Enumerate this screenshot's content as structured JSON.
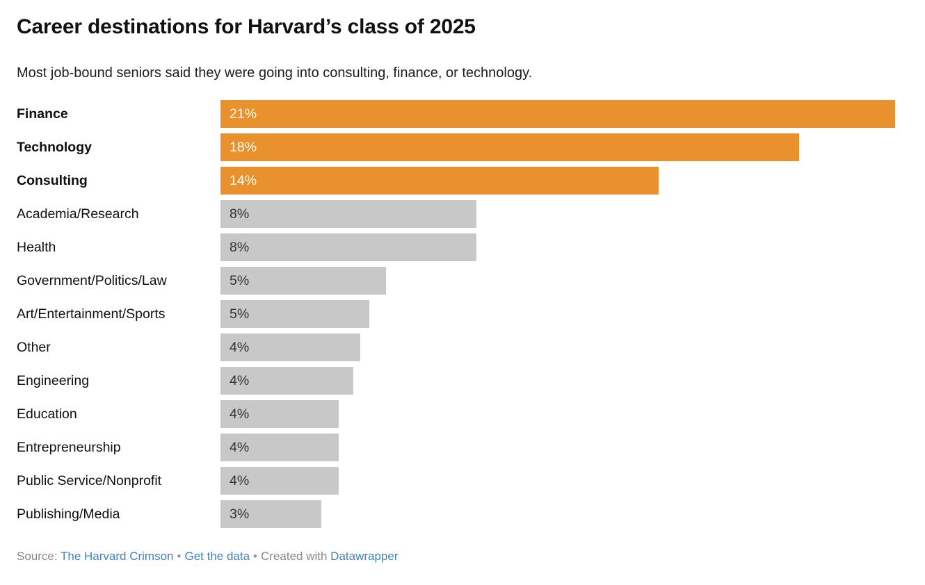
{
  "header": {
    "title": "Career destinations for Harvard’s class of 2025",
    "subtitle": "Most job-bound seniors said they were going into consulting, finance, or technology."
  },
  "chart_data": {
    "type": "bar",
    "orientation": "horizontal",
    "title": "Career destinations for Harvard’s class of 2025",
    "subtitle": "Most job-bound seniors said they were going into consulting, finance, or technology.",
    "categories": [
      "Finance",
      "Technology",
      "Consulting",
      "Academia/Research",
      "Health",
      "Government/Politics/Law",
      "Art/Entertainment/Sports",
      "Other",
      "Engineering",
      "Education",
      "Entrepreneurship",
      "Public Service/Nonprofit",
      "Publishing/Media"
    ],
    "values": [
      21,
      18,
      14,
      8,
      8,
      5,
      5,
      4,
      4,
      4,
      4,
      4,
      3
    ],
    "value_labels": [
      "21%",
      "18%",
      "14%",
      "8%",
      "8%",
      "5%",
      "5%",
      "4%",
      "4%",
      "4%",
      "4%",
      "4%",
      "3%"
    ],
    "unit": "%",
    "xlim": [
      0,
      21
    ],
    "grid": false,
    "legend": "none",
    "highlighted_categories": [
      "Finance",
      "Technology",
      "Consulting"
    ],
    "bar_color_highlight": "#E8912D",
    "bar_color_default": "#C8C8C8",
    "value_color_on_highlight": "#FFFFFF",
    "value_color_on_default": "#333333"
  },
  "rows": [
    {
      "label": "Finance",
      "value_label": "21%",
      "width_pct": 100,
      "highlight": true,
      "bold": true
    },
    {
      "label": "Technology",
      "value_label": "18%",
      "width_pct": 85.8,
      "highlight": true,
      "bold": true
    },
    {
      "label": "Consulting",
      "value_label": "14%",
      "width_pct": 64.9,
      "highlight": true,
      "bold": true
    },
    {
      "label": "Academia/Research",
      "value_label": "8%",
      "width_pct": 37.9,
      "highlight": false,
      "bold": false
    },
    {
      "label": "Health",
      "value_label": "8%",
      "width_pct": 37.9,
      "highlight": false,
      "bold": false
    },
    {
      "label": "Government/Politics/Law",
      "value_label": "5%",
      "width_pct": 24.5,
      "highlight": false,
      "bold": false
    },
    {
      "label": "Art/Entertainment/Sports",
      "value_label": "5%",
      "width_pct": 22.1,
      "highlight": false,
      "bold": false
    },
    {
      "label": "Other",
      "value_label": "4%",
      "width_pct": 20.7,
      "highlight": false,
      "bold": false
    },
    {
      "label": "Engineering",
      "value_label": "4%",
      "width_pct": 19.7,
      "highlight": false,
      "bold": false
    },
    {
      "label": "Education",
      "value_label": "4%",
      "width_pct": 17.5,
      "highlight": false,
      "bold": false
    },
    {
      "label": "Entrepreneurship",
      "value_label": "4%",
      "width_pct": 17.5,
      "highlight": false,
      "bold": false
    },
    {
      "label": "Public Service/Nonprofit",
      "value_label": "4%",
      "width_pct": 17.5,
      "highlight": false,
      "bold": false
    },
    {
      "label": "Publishing/Media",
      "value_label": "3%",
      "width_pct": 14.9,
      "highlight": false,
      "bold": false
    }
  ],
  "footer": {
    "source_prefix": "Source:",
    "source_link": "The Harvard Crimson",
    "separator": "•",
    "data_link": "Get the data",
    "created_prefix": "Created with",
    "tool_link": "Datawrapper"
  },
  "colors": {
    "highlight_orange": "#E8912D",
    "bar_gray": "#C8C8C8",
    "link_blue": "#3D82C4",
    "footer_gray": "#888888"
  }
}
